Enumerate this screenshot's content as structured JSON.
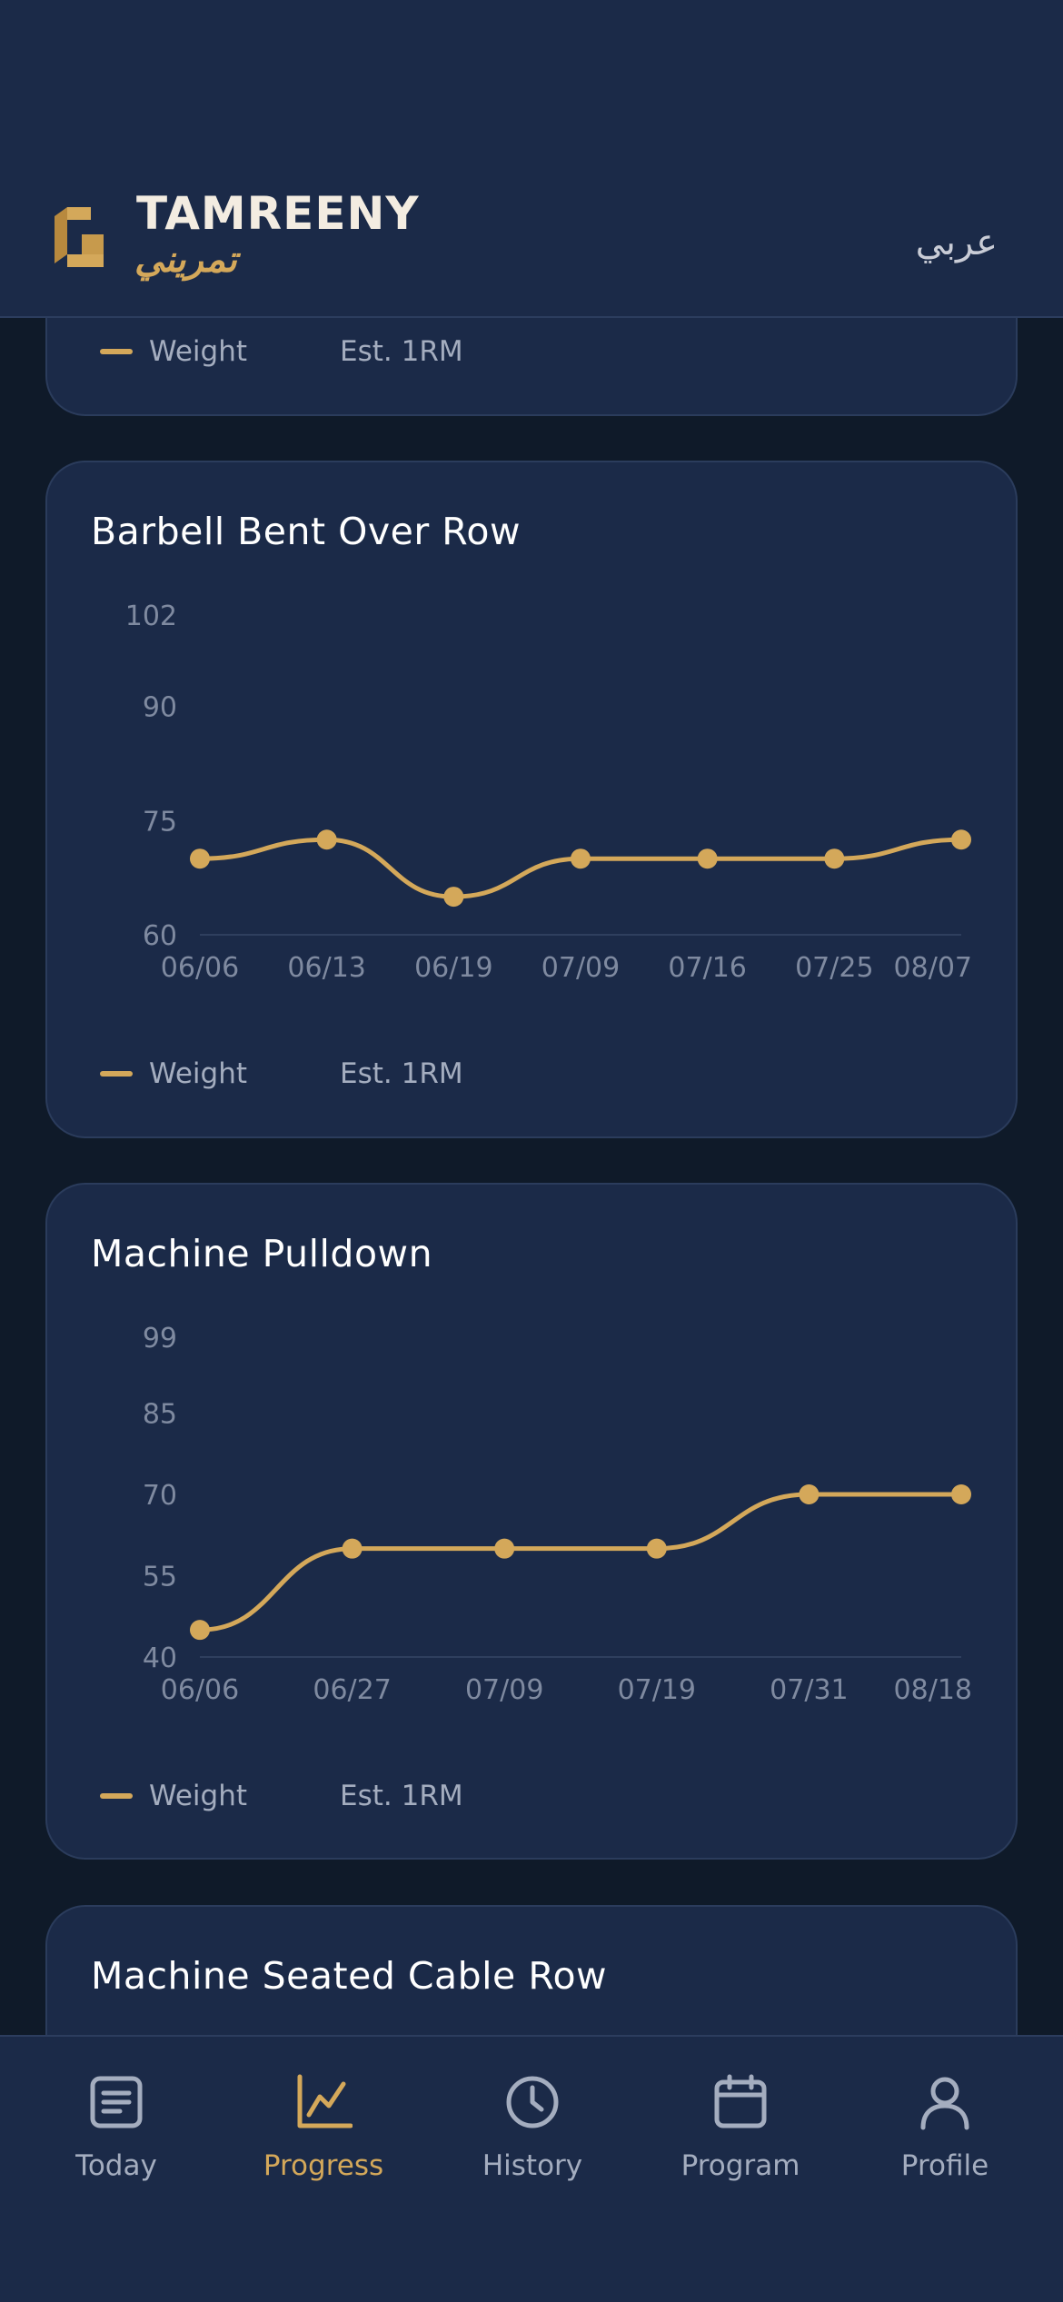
{
  "app": {
    "brand_en": "TAMREENY",
    "brand_ar": "تمريني",
    "lang_toggle": "عربي"
  },
  "colors": {
    "background": "#0f1a29",
    "card": "#1b2a48",
    "accent": "#d4a85a",
    "muted_text": "#a4adbf",
    "axis_text": "#7f8aa0"
  },
  "legend": {
    "weight": "Weight",
    "est1rm": "Est. 1RM"
  },
  "cards": [
    {
      "title": "Barbell Bent Over Row"
    },
    {
      "title": "Machine Pulldown"
    },
    {
      "title": "Machine Seated Cable Row"
    }
  ],
  "chart_data": [
    {
      "type": "line",
      "title": "Barbell Bent Over Row",
      "categories": [
        "06/06",
        "06/13",
        "06/19",
        "07/09",
        "07/16",
        "07/25",
        "08/07"
      ],
      "series": [
        {
          "name": "Weight",
          "values": [
            70,
            72.5,
            65,
            70,
            70,
            70,
            72.5
          ]
        }
      ],
      "yticks": [
        60,
        75,
        90,
        102
      ],
      "ylim": [
        60,
        102
      ],
      "legend": [
        "Weight",
        "Est. 1RM"
      ]
    },
    {
      "type": "line",
      "title": "Machine Pulldown",
      "categories": [
        "06/06",
        "06/27",
        "07/09",
        "07/19",
        "07/31",
        "08/18"
      ],
      "series": [
        {
          "name": "Weight",
          "values": [
            45,
            60,
            60,
            60,
            70,
            70
          ]
        }
      ],
      "yticks": [
        40,
        55,
        70,
        85,
        99
      ],
      "ylim": [
        40,
        99
      ],
      "legend": [
        "Weight",
        "Est. 1RM"
      ]
    }
  ],
  "nav": {
    "items": [
      {
        "label": "Today",
        "icon": "today-icon",
        "active": false
      },
      {
        "label": "Progress",
        "icon": "progress-chart-icon",
        "active": true
      },
      {
        "label": "History",
        "icon": "clock-icon",
        "active": false
      },
      {
        "label": "Program",
        "icon": "calendar-icon",
        "active": false
      },
      {
        "label": "Profile",
        "icon": "user-icon",
        "active": false
      }
    ]
  }
}
